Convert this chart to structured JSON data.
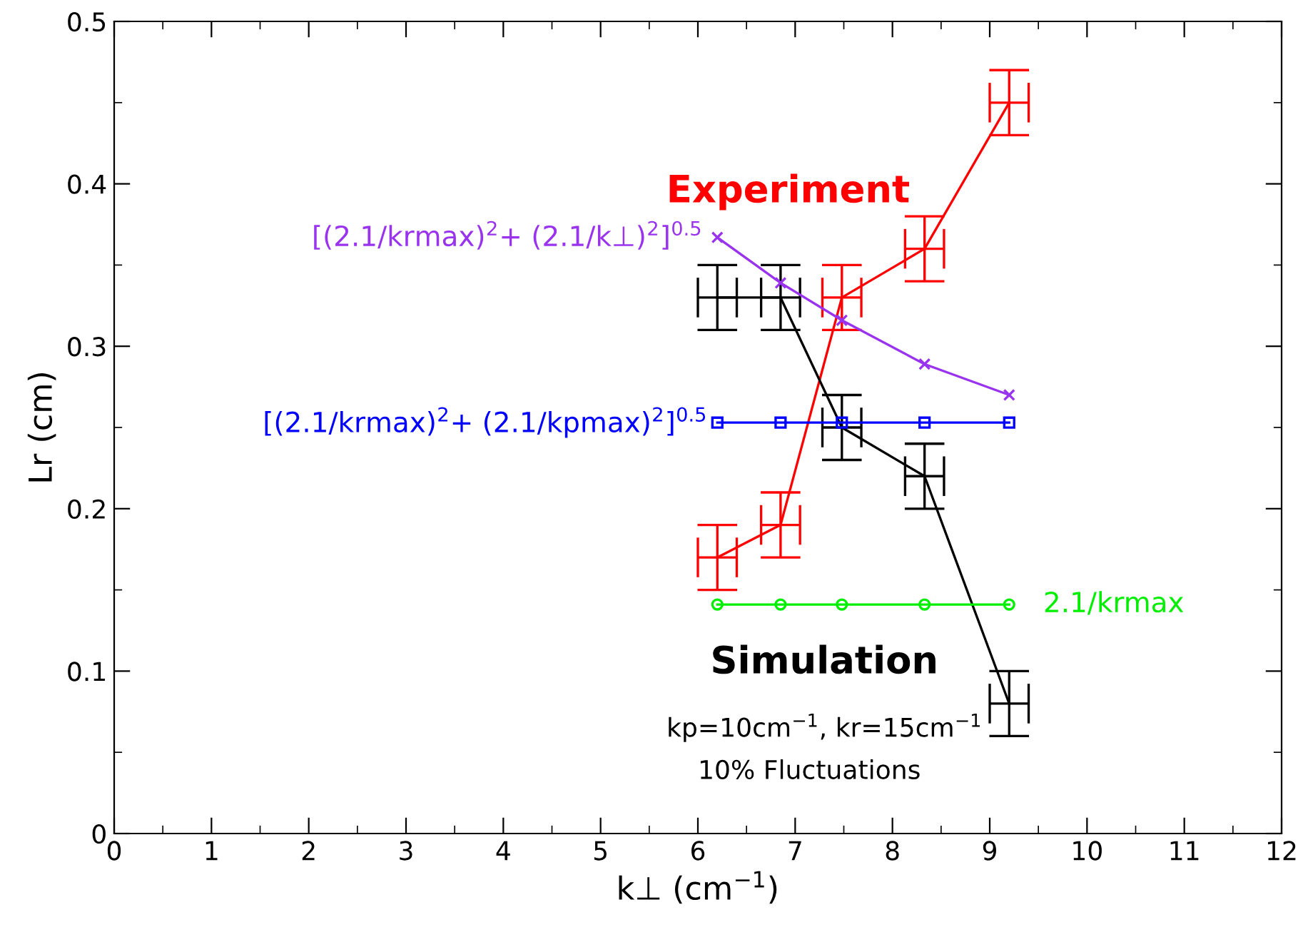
{
  "chart_data": {
    "type": "line",
    "xlabel": "k⊥ (cm$^{−1}$)",
    "ylabel": "Lr (cm)",
    "xlim": [
      0,
      12
    ],
    "xticks": [
      0,
      1,
      2,
      3,
      4,
      5,
      6,
      7,
      8,
      9,
      10,
      11,
      12
    ],
    "ylim": [
      0,
      0.5
    ],
    "yticks": [
      0,
      0.1,
      0.2,
      0.3,
      0.4,
      0.5
    ],
    "grid": false,
    "legend": false,
    "line_style": "solid",
    "x": [
      6.2,
      6.85,
      7.48,
      8.33,
      9.2
    ],
    "series": [
      {
        "name": "Experiment",
        "color": "#ff0000",
        "marker": "none",
        "values": [
          0.17,
          0.19,
          0.33,
          0.36,
          0.45
        ],
        "errors": [
          0.02,
          0.02,
          0.02,
          0.02,
          0.02
        ],
        "xerrors": [
          0.2,
          0.2,
          0.2,
          0.2,
          0.2
        ]
      },
      {
        "name": "Simulation",
        "color": "#000000",
        "marker": "none",
        "values": [
          0.33,
          0.33,
          0.25,
          0.22,
          0.08
        ],
        "errors": [
          0.02,
          0.02,
          0.02,
          0.02,
          0.02
        ],
        "xerrors": [
          0.2,
          0.2,
          0.2,
          0.2,
          0.2
        ]
      },
      {
        "name": "[(2.1/krmax)$^{2}$+ (2.1/k⊥)$^{2}$]$^{0.5}$",
        "color": "#9933ee",
        "marker": "cross",
        "values": [
          0.367,
          0.339,
          0.316,
          0.289,
          0.27
        ]
      },
      {
        "name": "[(2.1/krmax)$^{2}$+ (2.1/kpmax)$^{2}$]$^{0.5}$",
        "color": "#0000ff",
        "marker": "square",
        "values": [
          0.253,
          0.253,
          0.253,
          0.253,
          0.253
        ]
      },
      {
        "name": "2.1/krmax",
        "color": "#00ee00",
        "marker": "circle",
        "values": [
          0.141,
          0.141,
          0.141,
          0.141,
          0.141
        ]
      }
    ],
    "annotations": [
      "kp=10cm$^{−1}$, kr=15cm$^{−1}$",
      "10% Fluctuations"
    ]
  }
}
